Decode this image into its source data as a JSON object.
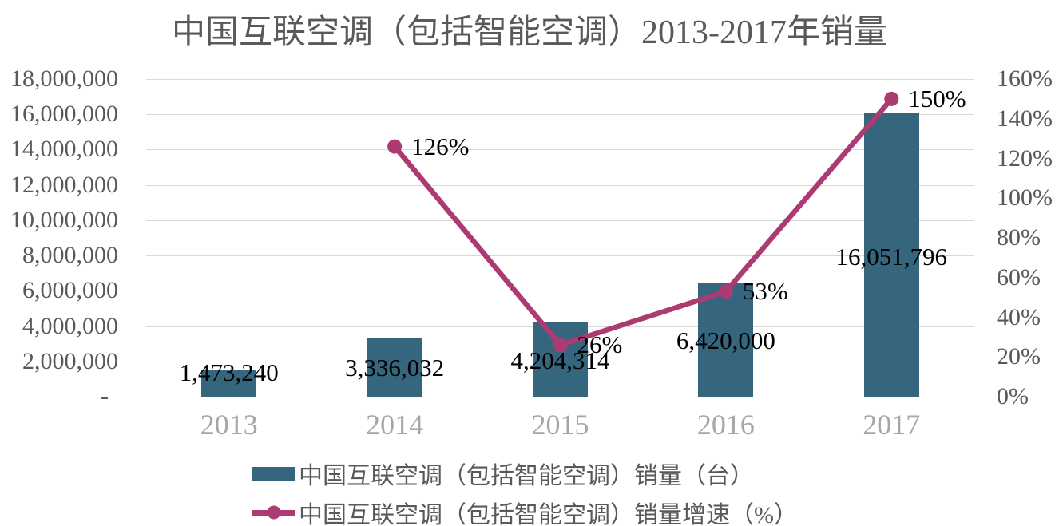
{
  "chart_data": {
    "type": "combo-bar-line",
    "title": "中国互联空调（包括智能空调）2013-2017年销量",
    "categories": [
      "2013",
      "2014",
      "2015",
      "2016",
      "2017"
    ],
    "series": [
      {
        "name": "中国互联空调（包括智能空调）销量（台）",
        "type": "bar",
        "axis": "left",
        "color": "#35667E",
        "values": [
          1473240,
          3336032,
          4204314,
          6420000,
          16051796
        ],
        "data_labels": [
          "1,473,240",
          "3,336,032",
          "4,204,314",
          "6,420,000",
          "16,051,796"
        ]
      },
      {
        "name": "中国互联空调（包括智能空调）销量增速（%）",
        "type": "line",
        "axis": "right",
        "color": "#AD3B73",
        "values": [
          null,
          126,
          26,
          53,
          150
        ],
        "data_labels": [
          null,
          "126%",
          "26%",
          "53%",
          "150%"
        ]
      }
    ],
    "left_axis": {
      "min": 0,
      "max": 18000000,
      "tick_labels": [
        "18,000,000",
        "16,000,000",
        "14,000,000",
        "12,000,000",
        "10,000,000",
        "8,000,000",
        "6,000,000",
        "4,000,000",
        "2,000,000",
        "-"
      ]
    },
    "right_axis": {
      "min": 0,
      "max": 160,
      "tick_labels": [
        "160%",
        "140%",
        "120%",
        "100%",
        "80%",
        "60%",
        "40%",
        "20%",
        "0%"
      ]
    },
    "grid": true,
    "legend_position": "bottom",
    "colors": {
      "grid": "#D9D9D9",
      "title_text": "#595959",
      "axis_text": "#595959",
      "category_text": "#A6A6A6",
      "data_label_text": "#000000",
      "background": "#FFFFFF"
    },
    "layout_hints": {
      "bar_label_center_y": [
        467,
        461,
        452,
        427,
        322
      ],
      "pct_label_offset_x": 21
    }
  }
}
